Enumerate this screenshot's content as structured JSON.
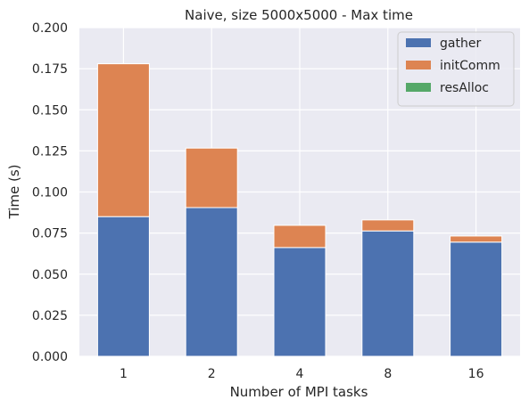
{
  "chart_data": {
    "type": "bar",
    "stacked": true,
    "title": "Naive, size 5000x5000 - Max time",
    "xlabel": "Number of MPI tasks",
    "ylabel": "Time (s)",
    "categories": [
      "1",
      "2",
      "4",
      "8",
      "16"
    ],
    "ylim": [
      0,
      0.2
    ],
    "yticks": [
      "0.000",
      "0.025",
      "0.050",
      "0.075",
      "0.100",
      "0.125",
      "0.150",
      "0.175",
      "0.200"
    ],
    "grid": true,
    "legend_position": "top-right",
    "series": [
      {
        "name": "gather",
        "color": "#4c72b0",
        "values": [
          0.085,
          0.0905,
          0.0662,
          0.0763,
          0.0695
        ]
      },
      {
        "name": "initComm",
        "color": "#dd8452",
        "values": [
          0.093,
          0.0362,
          0.0135,
          0.0067,
          0.0037
        ]
      },
      {
        "name": "resAlloc",
        "color": "#55a868",
        "values": [
          0.0,
          0.0,
          0.0,
          0.0,
          0.0
        ]
      }
    ],
    "background_color": "#eaeaf2",
    "grid_color": "#ffffff"
  }
}
